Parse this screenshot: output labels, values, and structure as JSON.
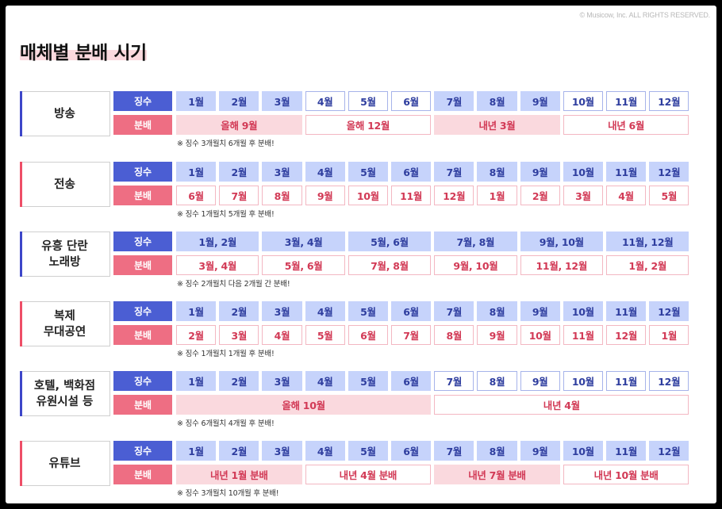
{
  "copyright": "© Musicow, Inc. ALL RIGHTS RESERVED.",
  "title": "매체별 분배 시기",
  "row_labels": {
    "collection": "징수",
    "distribution": "분배"
  },
  "sections": [
    {
      "name": "방송",
      "accent": "blue",
      "collection": [
        {
          "text": "1월",
          "span": 1,
          "style": "filled"
        },
        {
          "text": "2월",
          "span": 1,
          "style": "filled"
        },
        {
          "text": "3월",
          "span": 1,
          "style": "filled"
        },
        {
          "text": "4월",
          "span": 1,
          "style": "outline"
        },
        {
          "text": "5월",
          "span": 1,
          "style": "outline"
        },
        {
          "text": "6월",
          "span": 1,
          "style": "outline"
        },
        {
          "text": "7월",
          "span": 1,
          "style": "filled"
        },
        {
          "text": "8월",
          "span": 1,
          "style": "filled"
        },
        {
          "text": "9월",
          "span": 1,
          "style": "filled"
        },
        {
          "text": "10월",
          "span": 1,
          "style": "outline"
        },
        {
          "text": "11월",
          "span": 1,
          "style": "outline"
        },
        {
          "text": "12월",
          "span": 1,
          "style": "outline"
        }
      ],
      "distribution": [
        {
          "text": "올해 9월",
          "span": 3,
          "style": "filled"
        },
        {
          "text": "올해 12월",
          "span": 3,
          "style": "outline"
        },
        {
          "text": "내년 3월",
          "span": 3,
          "style": "filled"
        },
        {
          "text": "내년 6월",
          "span": 3,
          "style": "outline"
        }
      ],
      "note": "※ 징수 3개월치 6개월 후 분배!"
    },
    {
      "name": "전송",
      "accent": "red",
      "collection": [
        {
          "text": "1월",
          "span": 1,
          "style": "filled"
        },
        {
          "text": "2월",
          "span": 1,
          "style": "filled"
        },
        {
          "text": "3월",
          "span": 1,
          "style": "filled"
        },
        {
          "text": "4월",
          "span": 1,
          "style": "filled"
        },
        {
          "text": "5월",
          "span": 1,
          "style": "filled"
        },
        {
          "text": "6월",
          "span": 1,
          "style": "filled"
        },
        {
          "text": "7월",
          "span": 1,
          "style": "filled"
        },
        {
          "text": "8월",
          "span": 1,
          "style": "filled"
        },
        {
          "text": "9월",
          "span": 1,
          "style": "filled"
        },
        {
          "text": "10월",
          "span": 1,
          "style": "filled"
        },
        {
          "text": "11월",
          "span": 1,
          "style": "filled"
        },
        {
          "text": "12월",
          "span": 1,
          "style": "filled"
        }
      ],
      "distribution": [
        {
          "text": "6월",
          "span": 1,
          "style": "outline"
        },
        {
          "text": "7월",
          "span": 1,
          "style": "outline"
        },
        {
          "text": "8월",
          "span": 1,
          "style": "outline"
        },
        {
          "text": "9월",
          "span": 1,
          "style": "outline"
        },
        {
          "text": "10월",
          "span": 1,
          "style": "outline"
        },
        {
          "text": "11월",
          "span": 1,
          "style": "outline"
        },
        {
          "text": "12월",
          "span": 1,
          "style": "outline"
        },
        {
          "text": "1월",
          "span": 1,
          "style": "outline"
        },
        {
          "text": "2월",
          "span": 1,
          "style": "outline"
        },
        {
          "text": "3월",
          "span": 1,
          "style": "outline"
        },
        {
          "text": "4월",
          "span": 1,
          "style": "outline"
        },
        {
          "text": "5월",
          "span": 1,
          "style": "outline"
        }
      ],
      "note": "※ 징수 1개월치 5개월 후 분배!"
    },
    {
      "name": "유흥 단란\n노래방",
      "accent": "blue",
      "collection": [
        {
          "text": "1월, 2월",
          "span": 2,
          "style": "filled"
        },
        {
          "text": "3월, 4월",
          "span": 2,
          "style": "filled"
        },
        {
          "text": "5월, 6월",
          "span": 2,
          "style": "filled"
        },
        {
          "text": "7월, 8월",
          "span": 2,
          "style": "filled"
        },
        {
          "text": "9월, 10월",
          "span": 2,
          "style": "filled"
        },
        {
          "text": "11월, 12월",
          "span": 2,
          "style": "filled"
        }
      ],
      "distribution": [
        {
          "text": "3월, 4월",
          "span": 2,
          "style": "outline"
        },
        {
          "text": "5월, 6월",
          "span": 2,
          "style": "outline"
        },
        {
          "text": "7월, 8월",
          "span": 2,
          "style": "outline"
        },
        {
          "text": "9월, 10월",
          "span": 2,
          "style": "outline"
        },
        {
          "text": "11월, 12월",
          "span": 2,
          "style": "outline"
        },
        {
          "text": "1월, 2월",
          "span": 2,
          "style": "outline"
        }
      ],
      "note": "※ 징수 2개월치 다음 2개월 간 분배!"
    },
    {
      "name": "복제\n무대공연",
      "accent": "red",
      "collection": [
        {
          "text": "1월",
          "span": 1,
          "style": "filled"
        },
        {
          "text": "2월",
          "span": 1,
          "style": "filled"
        },
        {
          "text": "3월",
          "span": 1,
          "style": "filled"
        },
        {
          "text": "4월",
          "span": 1,
          "style": "filled"
        },
        {
          "text": "5월",
          "span": 1,
          "style": "filled"
        },
        {
          "text": "6월",
          "span": 1,
          "style": "filled"
        },
        {
          "text": "7월",
          "span": 1,
          "style": "filled"
        },
        {
          "text": "8월",
          "span": 1,
          "style": "filled"
        },
        {
          "text": "9월",
          "span": 1,
          "style": "filled"
        },
        {
          "text": "10월",
          "span": 1,
          "style": "filled"
        },
        {
          "text": "11월",
          "span": 1,
          "style": "filled"
        },
        {
          "text": "12월",
          "span": 1,
          "style": "filled"
        }
      ],
      "distribution": [
        {
          "text": "2월",
          "span": 1,
          "style": "outline"
        },
        {
          "text": "3월",
          "span": 1,
          "style": "outline"
        },
        {
          "text": "4월",
          "span": 1,
          "style": "outline"
        },
        {
          "text": "5월",
          "span": 1,
          "style": "outline"
        },
        {
          "text": "6월",
          "span": 1,
          "style": "outline"
        },
        {
          "text": "7월",
          "span": 1,
          "style": "outline"
        },
        {
          "text": "8월",
          "span": 1,
          "style": "outline"
        },
        {
          "text": "9월",
          "span": 1,
          "style": "outline"
        },
        {
          "text": "10월",
          "span": 1,
          "style": "outline"
        },
        {
          "text": "11월",
          "span": 1,
          "style": "outline"
        },
        {
          "text": "12월",
          "span": 1,
          "style": "outline"
        },
        {
          "text": "1월",
          "span": 1,
          "style": "outline"
        }
      ],
      "note": "※ 징수 1개월치 1개월 후 분배!"
    },
    {
      "name": "호텔, 백화점\n유원시설 등",
      "accent": "blue",
      "collection": [
        {
          "text": "1월",
          "span": 1,
          "style": "filled"
        },
        {
          "text": "2월",
          "span": 1,
          "style": "filled"
        },
        {
          "text": "3월",
          "span": 1,
          "style": "filled"
        },
        {
          "text": "4월",
          "span": 1,
          "style": "filled"
        },
        {
          "text": "5월",
          "span": 1,
          "style": "filled"
        },
        {
          "text": "6월",
          "span": 1,
          "style": "filled"
        },
        {
          "text": "7월",
          "span": 1,
          "style": "outline"
        },
        {
          "text": "8월",
          "span": 1,
          "style": "outline"
        },
        {
          "text": "9월",
          "span": 1,
          "style": "outline"
        },
        {
          "text": "10월",
          "span": 1,
          "style": "outline"
        },
        {
          "text": "11월",
          "span": 1,
          "style": "outline"
        },
        {
          "text": "12월",
          "span": 1,
          "style": "outline"
        }
      ],
      "distribution": [
        {
          "text": "올해 10월",
          "span": 6,
          "style": "filled"
        },
        {
          "text": "내년 4월",
          "span": 6,
          "style": "outline"
        }
      ],
      "note": "※ 징수 6개월치 4개월 후 분배!"
    },
    {
      "name": "유튜브",
      "accent": "red",
      "collection": [
        {
          "text": "1월",
          "span": 1,
          "style": "filled"
        },
        {
          "text": "2월",
          "span": 1,
          "style": "filled"
        },
        {
          "text": "3월",
          "span": 1,
          "style": "filled"
        },
        {
          "text": "4월",
          "span": 1,
          "style": "filled"
        },
        {
          "text": "5월",
          "span": 1,
          "style": "filled"
        },
        {
          "text": "6월",
          "span": 1,
          "style": "filled"
        },
        {
          "text": "7월",
          "span": 1,
          "style": "filled"
        },
        {
          "text": "8월",
          "span": 1,
          "style": "filled"
        },
        {
          "text": "9월",
          "span": 1,
          "style": "filled"
        },
        {
          "text": "10월",
          "span": 1,
          "style": "filled"
        },
        {
          "text": "11월",
          "span": 1,
          "style": "filled"
        },
        {
          "text": "12월",
          "span": 1,
          "style": "filled"
        }
      ],
      "distribution": [
        {
          "text": "내년 1월 분배",
          "span": 3,
          "style": "filled"
        },
        {
          "text": "내년 4월 분배",
          "span": 3,
          "style": "outline"
        },
        {
          "text": "내년 7월 분배",
          "span": 3,
          "style": "filled"
        },
        {
          "text": "내년 10월 분배",
          "span": 3,
          "style": "outline"
        }
      ],
      "note": "※ 징수 3개월치 10개월 후 분배!"
    }
  ]
}
